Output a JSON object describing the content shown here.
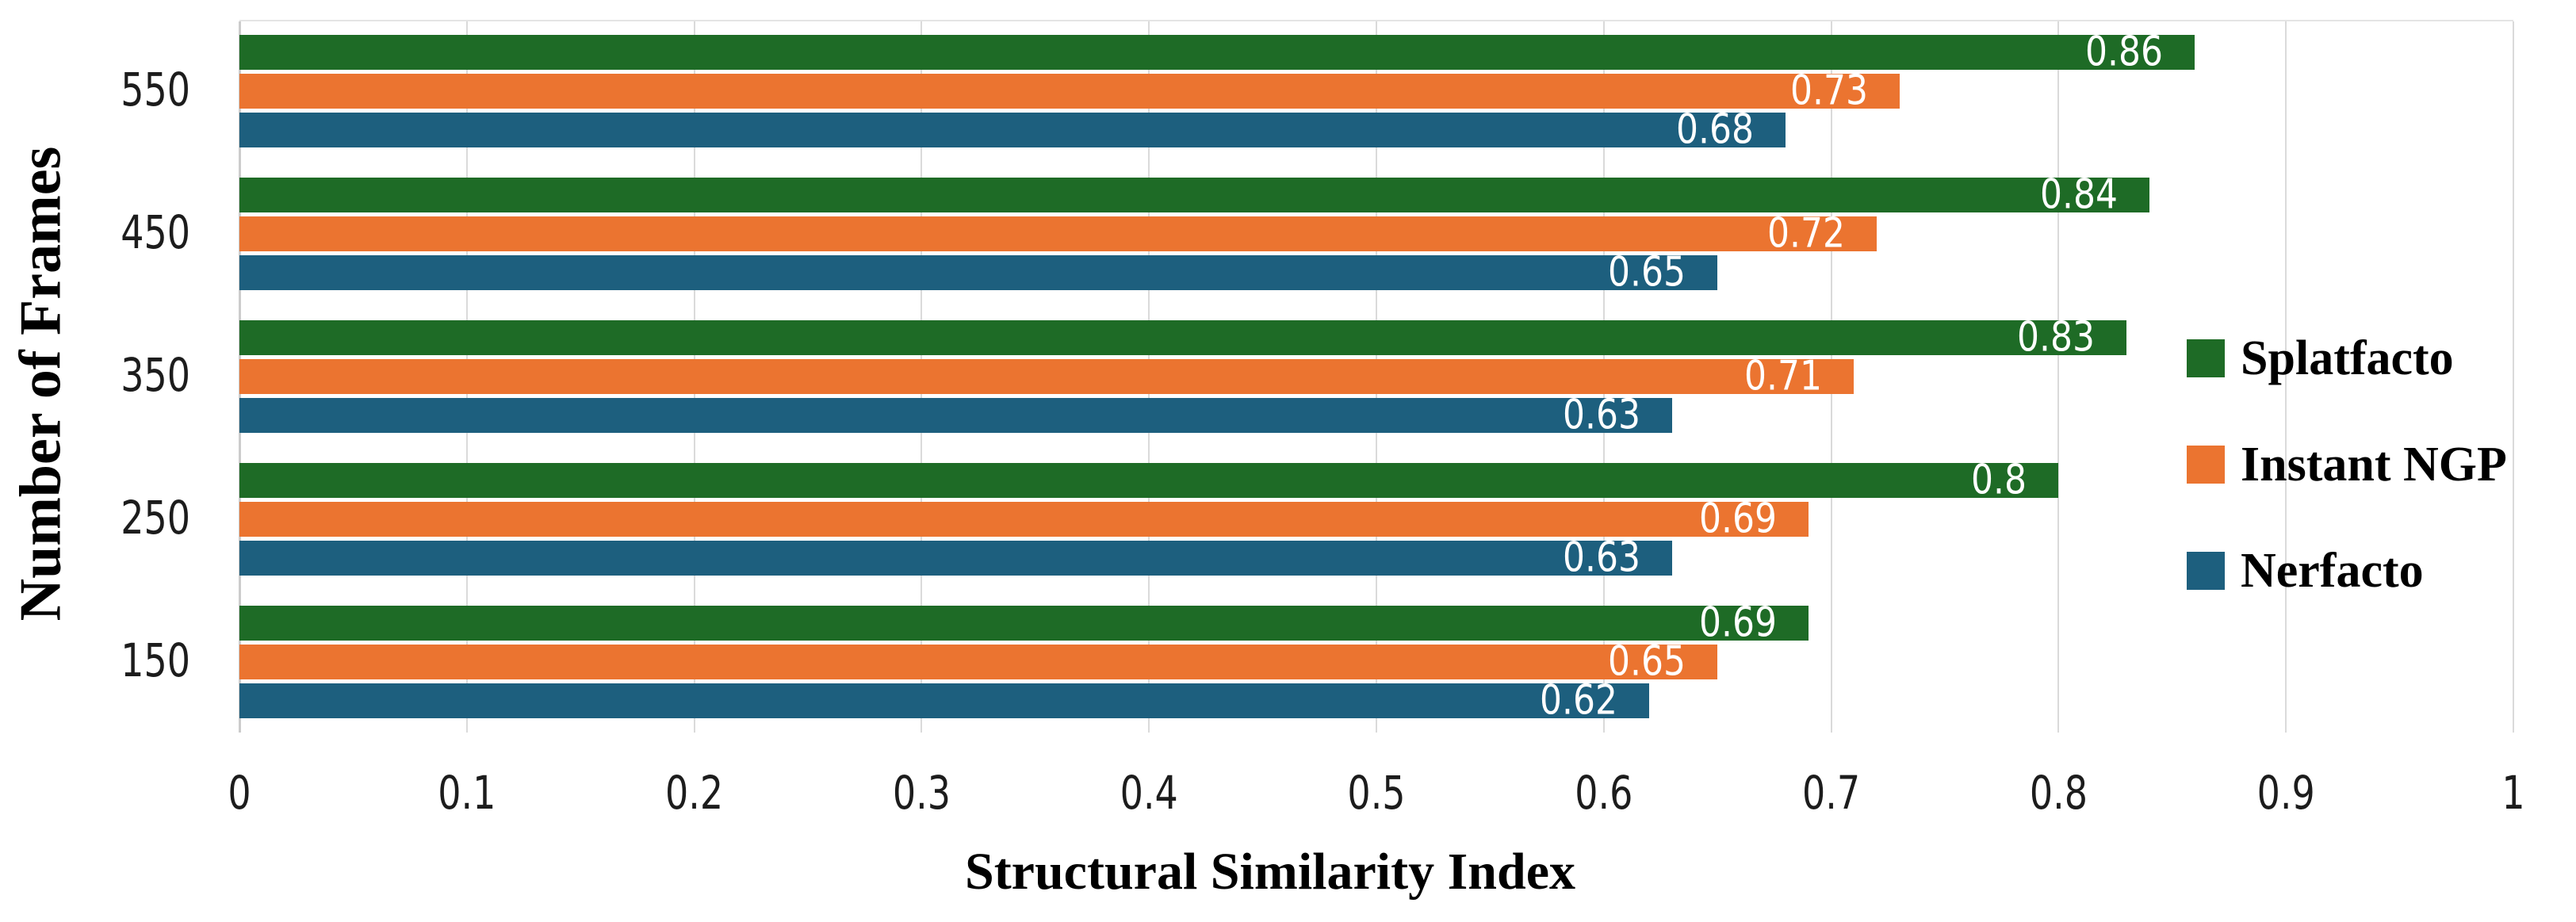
{
  "chart_data": {
    "type": "bar",
    "orientation": "horizontal",
    "title": "",
    "xlabel": "Structural Similarity Index",
    "ylabel": "Number of Frames",
    "categories": [
      "550",
      "450",
      "350",
      "250",
      "150"
    ],
    "series": [
      {
        "name": "Splatfacto",
        "color": "#1e6b26",
        "values": [
          0.86,
          0.84,
          0.83,
          0.8,
          0.69
        ]
      },
      {
        "name": "Instant NGP",
        "color": "#eb7430",
        "values": [
          0.73,
          0.72,
          0.71,
          0.69,
          0.65
        ]
      },
      {
        "name": "Nerfacto",
        "color": "#1d5f7e",
        "values": [
          0.68,
          0.65,
          0.63,
          0.63,
          0.62
        ]
      }
    ],
    "xlim": [
      0,
      1
    ],
    "x_ticks": [
      "0",
      "0.1",
      "0.2",
      "0.3",
      "0.4",
      "0.5",
      "0.6",
      "0.7",
      "0.8",
      "0.9",
      "1"
    ],
    "grid": "vertical",
    "gridline_color": "#dadada",
    "value_label_position": "inside-end",
    "value_label_color": "#ffffff",
    "legend_position": "right",
    "background": "#ffffff"
  }
}
